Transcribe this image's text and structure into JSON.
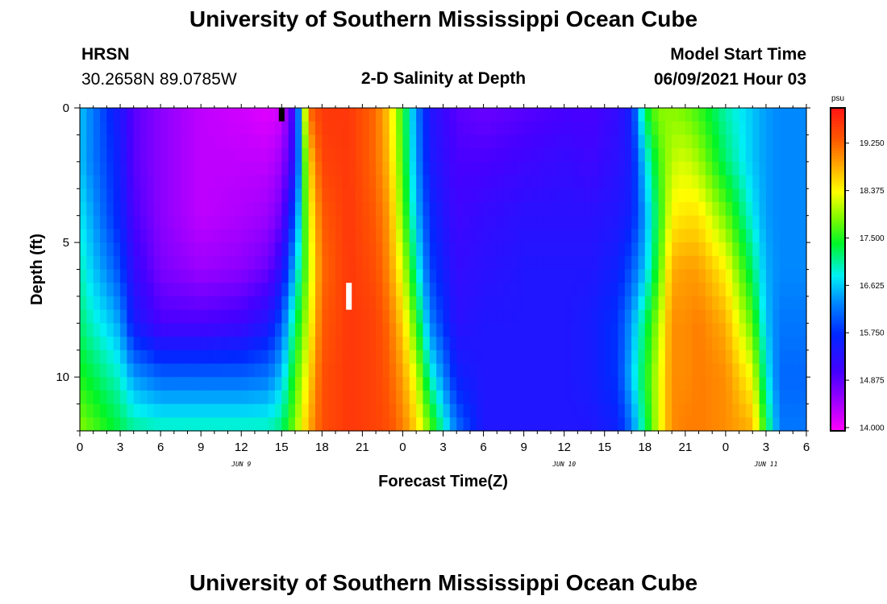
{
  "page": {
    "title_top": "University of Southern Mississippi Ocean Cube",
    "title_bottom": "University of Southern Mississippi Ocean Cube",
    "station": "HRSN",
    "coords": "30.2658N  89.0785W",
    "model_start_label": "Model Start Time",
    "model_start_value": "06/09/2021 Hour 03"
  },
  "chart_data": {
    "type": "heatmap",
    "title": "2-D Salinity at Depth",
    "xlabel": "Forecast Time(Z)",
    "ylabel": "Depth (ft)",
    "x_range_hours": [
      0,
      54
    ],
    "y_range_ft": [
      0,
      12
    ],
    "y_ticks": [
      0,
      5,
      10
    ],
    "x_tick_labels": [
      "0",
      "3",
      "6",
      "9",
      "12",
      "15",
      "18",
      "21",
      "0",
      "3",
      "6",
      "9",
      "12",
      "15",
      "18",
      "21",
      "0",
      "3",
      "6"
    ],
    "date_labels": [
      {
        "text": "JUN 9",
        "hour": 12
      },
      {
        "text": "JUN 10",
        "hour": 36
      },
      {
        "text": "JUN 11",
        "hour": 51
      }
    ],
    "colorbar": {
      "unit": "psu",
      "min": 13.94,
      "max": 19.9,
      "tick_values": [
        14.0,
        14.875,
        15.75,
        16.625,
        17.5,
        18.375,
        19.25
      ],
      "tick_labels": [
        "14.000",
        "14.875",
        "15.750",
        "16.625",
        "17.500",
        "18.375",
        "19.250"
      ]
    },
    "salinity_profile": {
      "description": "approximate salinity (psu) by forecast hour and depth",
      "time_hours": [
        0,
        1,
        2,
        3,
        4,
        6,
        9,
        12,
        14,
        15,
        16,
        17,
        18,
        20,
        22,
        23,
        24,
        25,
        26,
        28,
        30,
        33,
        36,
        38,
        40,
        41,
        42,
        43,
        44,
        45,
        46,
        48,
        50,
        51,
        52,
        54
      ],
      "depth_ft": [
        0,
        2,
        4,
        6,
        8,
        10,
        12
      ],
      "values": [
        [
          16.6,
          16.6,
          16.8,
          17.0,
          17.2,
          17.5,
          17.9
        ],
        [
          16.2,
          16.2,
          16.4,
          16.6,
          16.9,
          17.3,
          17.7
        ],
        [
          15.8,
          15.9,
          16.0,
          16.3,
          16.7,
          17.1,
          17.5
        ],
        [
          15.4,
          15.5,
          15.6,
          15.9,
          16.4,
          16.9,
          17.3
        ],
        [
          14.9,
          14.9,
          15.0,
          15.2,
          15.5,
          16.4,
          17.1
        ],
        [
          14.6,
          14.6,
          14.6,
          14.7,
          15.0,
          16.1,
          17.0
        ],
        [
          14.3,
          14.3,
          14.3,
          14.5,
          15.0,
          16.1,
          17.0
        ],
        [
          14.2,
          14.3,
          14.4,
          14.6,
          15.1,
          16.1,
          17.0
        ],
        [
          14.1,
          14.3,
          14.5,
          14.8,
          15.4,
          16.2,
          17.0
        ],
        [
          14.2,
          14.5,
          14.8,
          15.3,
          16.0,
          16.6,
          17.2
        ],
        [
          15.2,
          15.4,
          16.0,
          16.6,
          17.2,
          17.6,
          17.9
        ],
        [
          19.2,
          18.5,
          18.2,
          18.0,
          18.2,
          18.5,
          18.8
        ],
        [
          19.6,
          19.5,
          19.3,
          19.2,
          19.3,
          19.4,
          19.4
        ],
        [
          19.6,
          19.6,
          19.6,
          19.6,
          19.6,
          19.6,
          19.6
        ],
        [
          19.2,
          19.2,
          19.3,
          19.4,
          19.5,
          19.5,
          19.5
        ],
        [
          18.6,
          18.7,
          18.9,
          19.0,
          19.2,
          19.3,
          19.4
        ],
        [
          17.5,
          17.6,
          17.8,
          18.2,
          18.6,
          18.9,
          19.1
        ],
        [
          16.3,
          16.4,
          16.6,
          17.0,
          17.6,
          18.2,
          18.6
        ],
        [
          15.4,
          15.5,
          15.7,
          15.9,
          16.3,
          17.0,
          17.8
        ],
        [
          14.9,
          15.0,
          15.1,
          15.2,
          15.3,
          15.6,
          16.2
        ],
        [
          14.8,
          15.0,
          15.2,
          15.3,
          15.4,
          15.4,
          15.4
        ],
        [
          14.9,
          15.1,
          15.3,
          15.4,
          15.4,
          15.4,
          15.4
        ],
        [
          15.0,
          15.2,
          15.3,
          15.4,
          15.4,
          15.4,
          15.4
        ],
        [
          15.0,
          15.1,
          15.3,
          15.4,
          15.5,
          15.5,
          15.4
        ],
        [
          15.2,
          15.3,
          15.4,
          15.6,
          15.8,
          15.8,
          15.6
        ],
        [
          15.6,
          15.5,
          15.6,
          16.0,
          16.4,
          16.6,
          16.2
        ],
        [
          17.3,
          16.7,
          16.4,
          16.6,
          17.2,
          17.4,
          17.2
        ],
        [
          17.9,
          17.6,
          17.4,
          17.6,
          18.0,
          18.2,
          18.2
        ],
        [
          17.9,
          18.1,
          18.4,
          18.8,
          19.0,
          19.0,
          19.0
        ],
        [
          17.8,
          18.2,
          18.5,
          18.9,
          19.0,
          19.0,
          19.1
        ],
        [
          17.6,
          18.0,
          18.5,
          18.9,
          19.1,
          19.1,
          19.1
        ],
        [
          17.0,
          17.2,
          17.8,
          18.4,
          18.8,
          19.0,
          19.0
        ],
        [
          16.6,
          16.6,
          16.8,
          17.2,
          17.7,
          18.3,
          18.8
        ],
        [
          16.4,
          16.4,
          16.4,
          16.5,
          16.6,
          16.9,
          17.4
        ],
        [
          16.3,
          16.3,
          16.3,
          16.3,
          16.2,
          16.1,
          16.2
        ],
        [
          16.3,
          16.3,
          16.3,
          16.3,
          16.2,
          16.1,
          16.2
        ]
      ]
    },
    "markers": [
      {
        "label": "black bar",
        "hour": 15.0,
        "depth_ft": [
          0.0,
          0.5
        ],
        "color": "#000000"
      },
      {
        "label": "white bar",
        "hour": 20.0,
        "depth_ft": [
          6.5,
          7.5
        ],
        "color": "#ffffff"
      }
    ]
  }
}
